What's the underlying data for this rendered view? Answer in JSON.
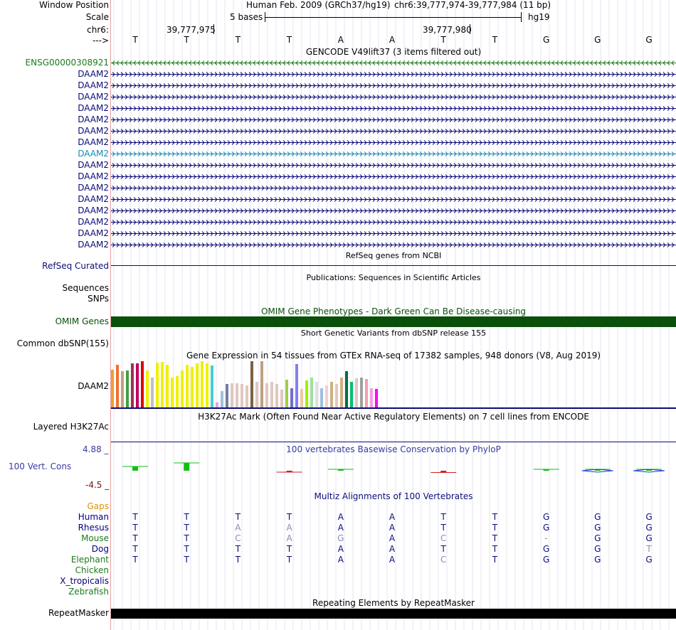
{
  "header": {
    "window_position_label": "Window Position",
    "scale_label": "Scale",
    "chrom_label": "chr6:",
    "strand_label": "--->",
    "assembly": "Human Feb. 2009 (GRCh37/hg19)",
    "position": "chr6:39,777,974-39,777,984 (11 bp)",
    "scale_text": "5 bases",
    "db": "hg19",
    "coord_left": "39,777,975",
    "coord_right": "39,777,980"
  },
  "bases": [
    "T",
    "T",
    "T",
    "T",
    "A",
    "A",
    "T",
    "T",
    "G",
    "G",
    "G"
  ],
  "gencode": {
    "title": "GENCODE V49lift37 (3 items filtered out)",
    "items": [
      {
        "name": "ENSG00000308921",
        "color": "#1c7a1c",
        "strand": "-"
      },
      {
        "name": "DAAM2",
        "color": "#0c0c78",
        "strand": "+"
      },
      {
        "name": "DAAM2",
        "color": "#0c0c78",
        "strand": "+"
      },
      {
        "name": "DAAM2",
        "color": "#0c0c78",
        "strand": "+"
      },
      {
        "name": "DAAM2",
        "color": "#0c0c78",
        "strand": "+"
      },
      {
        "name": "DAAM2",
        "color": "#0c0c78",
        "strand": "+"
      },
      {
        "name": "DAAM2",
        "color": "#0c0c78",
        "strand": "+"
      },
      {
        "name": "DAAM2",
        "color": "#0c0c78",
        "strand": "+"
      },
      {
        "name": "DAAM2",
        "color": "#1a8ab0",
        "strand": "+"
      },
      {
        "name": "DAAM2",
        "color": "#0c0c78",
        "strand": "+"
      },
      {
        "name": "DAAM2",
        "color": "#0c0c78",
        "strand": "+"
      },
      {
        "name": "DAAM2",
        "color": "#0c0c78",
        "strand": "+"
      },
      {
        "name": "DAAM2",
        "color": "#0c0c78",
        "strand": "+"
      },
      {
        "name": "DAAM2",
        "color": "#0c0c78",
        "strand": "+"
      },
      {
        "name": "DAAM2",
        "color": "#0c0c78",
        "strand": "+"
      },
      {
        "name": "DAAM2",
        "color": "#0c0c78",
        "strand": "+"
      },
      {
        "name": "DAAM2",
        "color": "#0c0c78",
        "strand": "+"
      }
    ]
  },
  "refseq": {
    "title": "RefSeq genes from NCBI",
    "label": "RefSeq Curated"
  },
  "publications": {
    "title": "Publications: Sequences in Scientific Articles",
    "label1": "Sequences",
    "label2": "SNPs"
  },
  "omim": {
    "title": "OMIM Gene Phenotypes - Dark Green Can Be Disease-causing",
    "label": "OMIM Genes",
    "color": "#0a500a"
  },
  "dbsnp": {
    "title": "Short Genetic Variants from dbSNP release 155",
    "label": "Common dbSNP(155)"
  },
  "gtex": {
    "title": "Gene Expression in 54 tissues from GTEx RNA-seq of 17382 samples, 948 donors (V8, Aug 2019)",
    "label": "DAAM2",
    "values": [
      0.82,
      0.92,
      0.78,
      0.8,
      0.95,
      0.96,
      1.0,
      0.8,
      0.65,
      0.97,
      0.98,
      0.93,
      0.65,
      0.68,
      0.8,
      0.92,
      0.88,
      0.95,
      1.0,
      0.96,
      0.9,
      0.1,
      0.35,
      0.5,
      0.52,
      0.53,
      0.5,
      0.48,
      1.0,
      0.55,
      1.0,
      0.52,
      0.55,
      0.5,
      0.38,
      0.6,
      0.42,
      0.94,
      0.4,
      0.58,
      0.65,
      0.56,
      0.42,
      0.48,
      0.55,
      0.5,
      0.65,
      0.78,
      0.55,
      0.63,
      0.65,
      0.62,
      0.42,
      0.4
    ],
    "colors": [
      "#f0a030",
      "#f07030",
      "#c0a080",
      "#40a040",
      "#a03050",
      "#c00060",
      "#e00000",
      "#f0f000",
      "#c0c0c0",
      "#f0f000",
      "#f0f000",
      "#f0f000",
      "#f0f000",
      "#f0f000",
      "#f0f000",
      "#f0f000",
      "#f0f000",
      "#f0f000",
      "#f0f000",
      "#f0f000",
      "#40d0d0",
      "#e0a0f0",
      "#a0c0e0",
      "#7080a0",
      "#e0c8c0",
      "#e0c8c0",
      "#e0c8c0",
      "#e0c8c0",
      "#806040",
      "#e0c8c0",
      "#c0a080",
      "#e0c8c0",
      "#e0c8c0",
      "#e0c8c0",
      "#e0c8c0",
      "#a0d040",
      "#7070d0",
      "#8080f0",
      "#f0c8a0",
      "#a0f000",
      "#a0e0a0",
      "#e0e0e0",
      "#a0c0e0",
      "#f0d0d0",
      "#d0b080",
      "#e0c8c0",
      "#d0b080",
      "#007040",
      "#00c070",
      "#e0c8c0",
      "#a0a0a0",
      "#f0a0b0",
      "#f0a0e0",
      "#ff00ff"
    ]
  },
  "h3k27ac": {
    "title": "H3K27Ac Mark (Often Found Near Active Regulatory Elements) on 7 cell lines from ENCODE",
    "label": "Layered H3K27Ac"
  },
  "conservation": {
    "title": "100 vertebrates Basewise Conservation by PhyloP",
    "label": "100 Vert. Cons",
    "ymax": "4.88 _",
    "ymin": "-4.5 _",
    "scores": [
      1.2,
      2.2,
      0,
      -0.4,
      0.2,
      0,
      -0.5,
      0,
      0.1,
      0.1,
      0.1
    ]
  },
  "multiz": {
    "title": "Multiz Alignments of 100 Vertebrates",
    "gaps_label": "Gaps",
    "species": [
      {
        "name": "Human",
        "color": "#000080",
        "bases": [
          "T",
          "T",
          "T",
          "T",
          "A",
          "A",
          "T",
          "T",
          "G",
          "G",
          "G"
        ],
        "faint": []
      },
      {
        "name": "Rhesus",
        "color": "#000080",
        "bases": [
          "T",
          "T",
          "A",
          "A",
          "A",
          "A",
          "T",
          "T",
          "G",
          "G",
          "G"
        ],
        "faint": [
          2,
          3
        ]
      },
      {
        "name": "Mouse",
        "color": "#1c7a1c",
        "bases": [
          "T",
          "T",
          "C",
          "A",
          "G",
          "A",
          "C",
          "T",
          "-",
          "G",
          "G"
        ],
        "faint": [
          2,
          3,
          4,
          6,
          8
        ]
      },
      {
        "name": "Dog",
        "color": "#000080",
        "bases": [
          "T",
          "T",
          "T",
          "T",
          "A",
          "A",
          "T",
          "T",
          "G",
          "G",
          "T"
        ],
        "faint": [
          10
        ]
      },
      {
        "name": "Elephant",
        "color": "#1c7a1c",
        "bases": [
          "T",
          "T",
          "T",
          "T",
          "A",
          "A",
          "C",
          "T",
          "G",
          "G",
          "G"
        ],
        "faint": [
          6
        ]
      },
      {
        "name": "Chicken",
        "color": "#1c7a1c",
        "bases": [],
        "faint": []
      },
      {
        "name": "X_tropicalis",
        "color": "#000080",
        "bases": [],
        "faint": []
      },
      {
        "name": "Zebrafish",
        "color": "#1c7a1c",
        "bases": [],
        "faint": []
      }
    ]
  },
  "repeatmasker": {
    "title": "Repeating Elements by RepeatMasker",
    "label": "RepeatMasker"
  }
}
